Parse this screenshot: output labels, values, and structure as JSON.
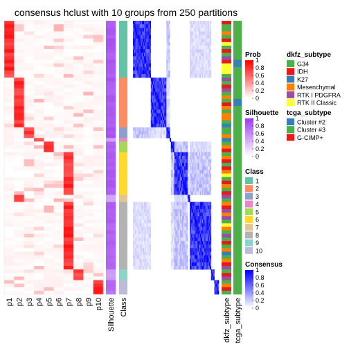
{
  "chart_data": {
    "type": "heatmap",
    "title": "consensus hclust with 10 groups from 250 partitions",
    "n_samples": 77,
    "prob_columns": [
      "p1",
      "p2",
      "p3",
      "p4",
      "p5",
      "p6",
      "p7",
      "p8",
      "p9",
      "p10"
    ],
    "annotation_columns": [
      "Silhouette",
      "Class"
    ],
    "side_columns": [
      "dkfz_subtype",
      "tcga_subtype"
    ],
    "class_sizes": [
      16,
      14,
      3,
      1,
      3,
      12,
      2,
      19,
      3,
      4
    ],
    "class_colors": {
      "1": "#66C2A5",
      "2": "#FC8D62",
      "3": "#8DA0CB",
      "4": "#E78AC3",
      "5": "#A6D854",
      "6": "#FFD92F",
      "7": "#E5C494",
      "8": "#B3B3B3",
      "9": "#8DD3C7",
      "10": "#BEBADA"
    },
    "silhouette_by_class": [
      0.9,
      0.9,
      0.9,
      0.5,
      0.85,
      0.9,
      0.55,
      0.85,
      0.55,
      0.8
    ],
    "dkfz_subtype_per_sample": [
      "IDH",
      "G34",
      "G34",
      "Mesenchymal",
      "G34",
      "IDH",
      "RTK II Classic",
      "G34",
      "IDH",
      "G34",
      "RTK I PDGFRA",
      "IDH",
      "RTK II Classic",
      "RTK II Classic",
      "RTK II Classic",
      "G34",
      "RTK I PDGFRA",
      "G34",
      "IDH",
      "RTK I PDGFRA",
      "G34",
      "Mesenchymal",
      "G34",
      "IDH",
      "Mesenchymal",
      "G34",
      "Mesenchymal",
      "Mesenchymal",
      "G34",
      "K27",
      "G34",
      "G34",
      "Mesenchymal",
      "K27",
      "G34",
      "Mesenchymal",
      "IDH",
      "G34",
      "Mesenchymal",
      "IDH",
      "G34",
      "IDH",
      "Mesenchymal",
      "RTK II Classic",
      "G34",
      "IDH",
      "Mesenchymal",
      "G34",
      "IDH",
      "RTK I PDGFRA",
      "G34",
      "Mesenchymal",
      "IDH",
      "RTK I PDGFRA",
      "Mesenchymal",
      "RTK I PDGFRA",
      "G34",
      "RTK II Classic",
      "Mesenchymal",
      "G34",
      "RTK I PDGFRA",
      "G34",
      "IDH",
      "G34",
      "Mesenchymal",
      "K27",
      "G34",
      "Mesenchymal",
      "IDH",
      "RTK I PDGFRA",
      "G34",
      "IDH",
      "RTK I PDGFRA",
      "G34",
      "Mesenchymal",
      "IDH",
      "G34"
    ],
    "tcga_subtype_per_sample": [
      "Cluster #3",
      "Cluster #3",
      "Cluster #3",
      "Cluster #3",
      "Cluster #3",
      "Cluster #3",
      "Cluster #3",
      "Cluster #3",
      "Cluster #3",
      "Cluster #3",
      "Cluster #3",
      "Cluster #2",
      "Cluster #2",
      "Cluster #3",
      "Cluster #3",
      "Cluster #3",
      "Cluster #3",
      "Cluster #3",
      "Cluster #3",
      "Cluster #3",
      "Cluster #3",
      "Cluster #3",
      "Cluster #2",
      "Cluster #2",
      "Cluster #3",
      "Cluster #3",
      "Cluster #3",
      "Cluster #3",
      "Cluster #3",
      "Cluster #3",
      "Cluster #3",
      "Cluster #3",
      "Cluster #3",
      "Cluster #3",
      "Cluster #3",
      "Cluster #3",
      "Cluster #3",
      "Cluster #3",
      "Cluster #3",
      "Cluster #3",
      "Cluster #3",
      "Cluster #3",
      "Cluster #3",
      "Cluster #3",
      "Cluster #3",
      "Cluster #3",
      "Cluster #3",
      "Cluster #3",
      "Cluster #3",
      "Cluster #3",
      "Cluster #3",
      "Cluster #3",
      "Cluster #3",
      "Cluster #3",
      "Cluster #3",
      "Cluster #3",
      "Cluster #3",
      "Cluster #3",
      "Cluster #3",
      "Cluster #3",
      "Cluster #3",
      "Cluster #3",
      "Cluster #3",
      "Cluster #3",
      "Cluster #3",
      "Cluster #3",
      "Cluster #3",
      "Cluster #3",
      "Cluster #3",
      "Cluster #3",
      "Cluster #3",
      "Cluster #3",
      "Cluster #3",
      "Cluster #3",
      "Cluster #3",
      "Cluster #3",
      "Cluster #3"
    ],
    "legends": [
      {
        "title": "Prob",
        "type": "continuous",
        "colors": [
          "#FFFFFF",
          "#FF0000"
        ],
        "ticks": [
          "0",
          "0.2",
          "0.4",
          "0.6",
          "0.8",
          "1"
        ]
      },
      {
        "title": "Silhouette",
        "type": "continuous",
        "colors": [
          "#FFFFFF",
          "#9E3CF0"
        ],
        "ticks": [
          "0",
          "0.2",
          "0.4",
          "0.6",
          "0.8",
          "1"
        ]
      },
      {
        "title": "Class",
        "type": "discrete",
        "items": [
          {
            "label": "1",
            "color": "#66C2A5"
          },
          {
            "label": "2",
            "color": "#FC8D62"
          },
          {
            "label": "3",
            "color": "#8DA0CB"
          },
          {
            "label": "4",
            "color": "#E78AC3"
          },
          {
            "label": "5",
            "color": "#A6D854"
          },
          {
            "label": "6",
            "color": "#FFD92F"
          },
          {
            "label": "7",
            "color": "#E5C494"
          },
          {
            "label": "8",
            "color": "#B3B3B3"
          },
          {
            "label": "9",
            "color": "#8DD3C7"
          },
          {
            "label": "10",
            "color": "#BEBADA"
          }
        ]
      },
      {
        "title": "Consensus",
        "type": "continuous",
        "colors": [
          "#FFFFFF",
          "#0000FF"
        ],
        "ticks": [
          "0",
          "0.2",
          "0.4",
          "0.6",
          "0.8",
          "1"
        ]
      },
      {
        "title": "dkfz_subtype",
        "type": "discrete",
        "items": [
          {
            "label": "G34",
            "color": "#4DAF4A"
          },
          {
            "label": "IDH",
            "color": "#E41A1C"
          },
          {
            "label": "K27",
            "color": "#377EB8"
          },
          {
            "label": "Mesenchymal",
            "color": "#FF7F00"
          },
          {
            "label": "RTK I PDGFRA",
            "color": "#984EA3"
          },
          {
            "label": "RTK II Classic",
            "color": "#FFFF33"
          }
        ]
      },
      {
        "title": "tcga_subtype",
        "type": "discrete",
        "items": [
          {
            "label": "Cluster #2",
            "color": "#377EB8"
          },
          {
            "label": "Cluster #3",
            "color": "#4DAF4A"
          },
          {
            "label": "G-CIMP+",
            "color": "#E41A1C"
          }
        ]
      }
    ]
  }
}
